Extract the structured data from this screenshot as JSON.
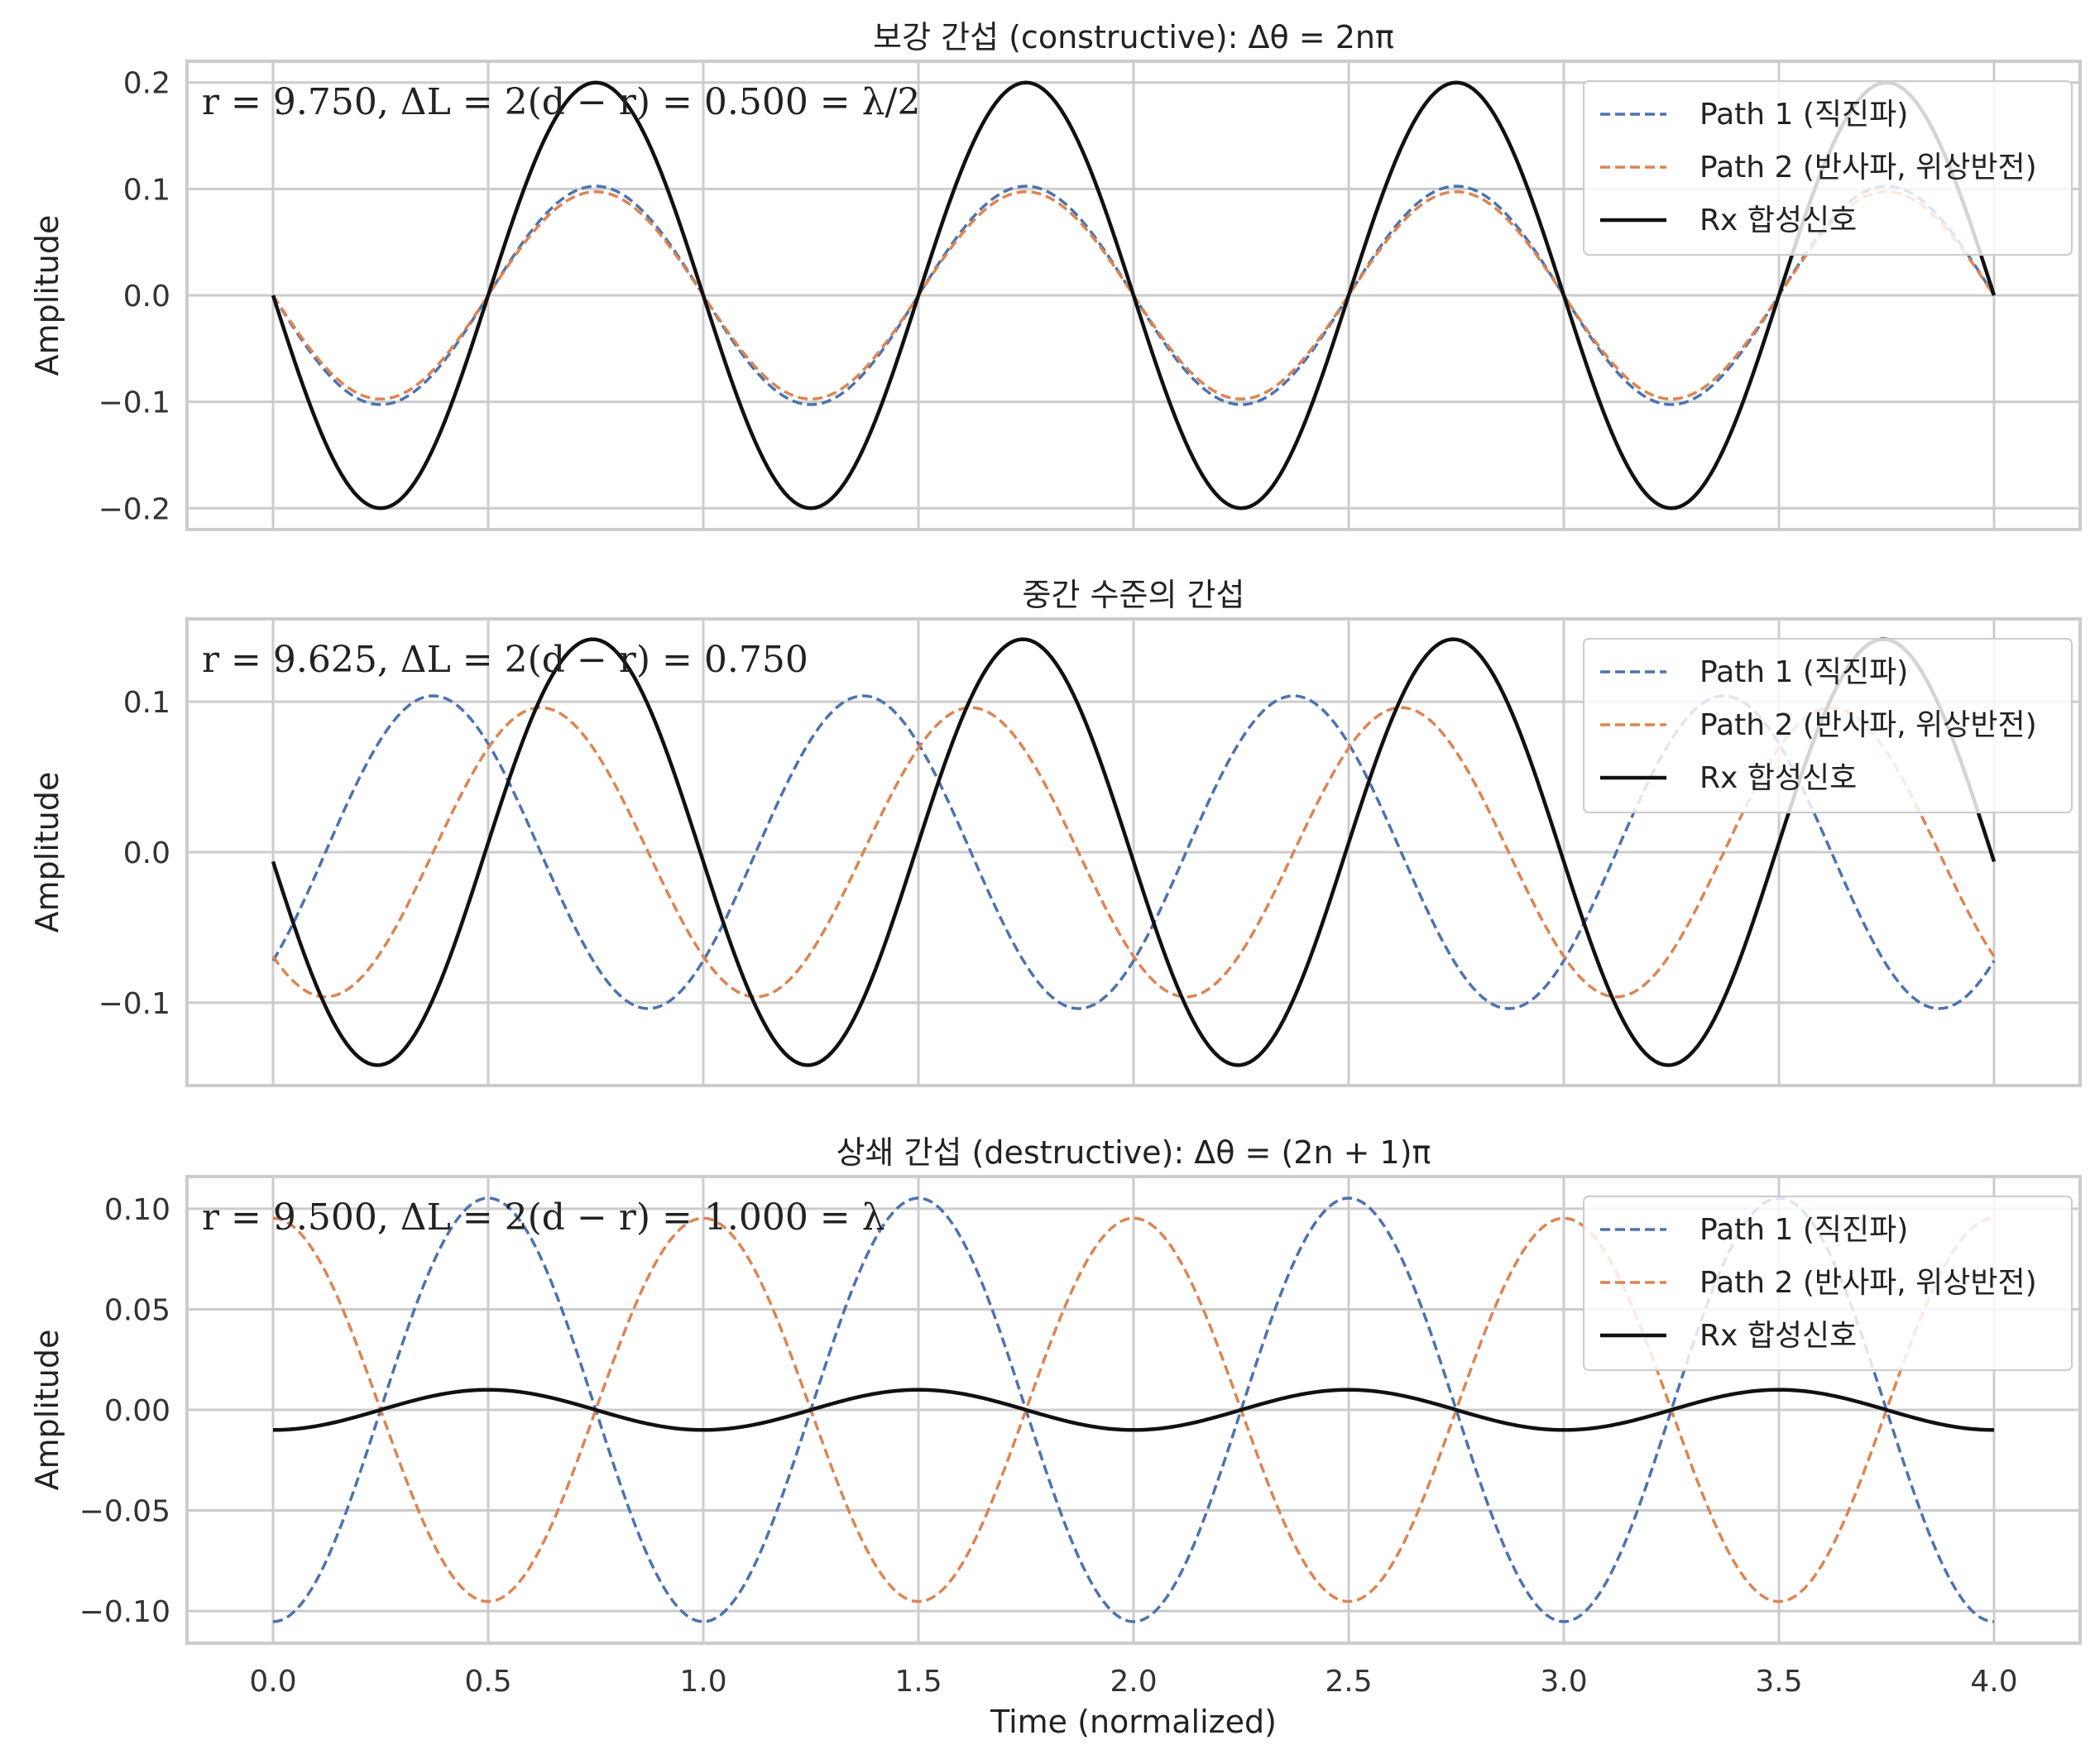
{
  "chart_data": [
    {
      "type": "line",
      "title": "보강 간섭 (constructive): Δθ = 2nπ",
      "ylabel": "Amplitude",
      "xlabel": "",
      "annotation": "r = 9.750,  ΔL = 2(d − r) = 0.500 = λ/2",
      "xlim": [
        -0.2,
        4.2
      ],
      "ylim": [
        -0.22,
        0.22
      ],
      "xticks": [
        0.0,
        0.5,
        1.0,
        1.5,
        2.0,
        2.5,
        3.0,
        3.5,
        4.0
      ],
      "xtick_labels": [
        "0.0",
        "0.5",
        "1.0",
        "1.5",
        "2.0",
        "2.5",
        "3.0",
        "3.5",
        "4.0"
      ],
      "yticks": [
        0.2,
        0.1,
        0.0,
        -0.1,
        -0.2
      ],
      "ytick_labels": [
        "0.2",
        "0.1",
        "0.0",
        "−0.1",
        "−0.2"
      ],
      "grid": true,
      "legend_position": "top-right",
      "series": [
        {
          "name": "Path 1 (직진파)",
          "color": "#4c72b0",
          "style": "dashed",
          "amplitude": 0.1026,
          "phase_cycles": 0.0,
          "period": 1.0
        },
        {
          "name": "Path 2 (반사파, 위상반전)",
          "color": "#dd8452",
          "style": "dashed",
          "amplitude": 0.0974,
          "phase_cycles": 0.0,
          "period": 1.0
        },
        {
          "name": "Rx 합성신호",
          "color": "#111111",
          "style": "solid",
          "amplitude": 0.2,
          "phase_cycles": 0.0,
          "period": 1.0
        }
      ]
    },
    {
      "type": "line",
      "title": "중간 수준의 간섭",
      "ylabel": "Amplitude",
      "xlabel": "",
      "annotation": "r = 9.625,  ΔL = 2(d − r) = 0.750",
      "xlim": [
        -0.2,
        4.2
      ],
      "ylim": [
        -0.155,
        0.155
      ],
      "xticks": [
        0.0,
        0.5,
        1.0,
        1.5,
        2.0,
        2.5,
        3.0,
        3.5,
        4.0
      ],
      "xtick_labels": [
        "0.0",
        "0.5",
        "1.0",
        "1.5",
        "2.0",
        "2.5",
        "3.0",
        "3.5",
        "4.0"
      ],
      "yticks": [
        0.1,
        0.0,
        -0.1
      ],
      "ytick_labels": [
        "0.1",
        "0.0",
        "−0.1"
      ],
      "grid": true,
      "legend_position": "top-right",
      "series": [
        {
          "name": "Path 1 (직진파)",
          "color": "#4c72b0",
          "style": "dashed",
          "amplitude": 0.1039,
          "phase_cycles": 0.378,
          "period": 1.0
        },
        {
          "name": "Path 2 (반사파, 위상반전)",
          "color": "#dd8452",
          "style": "dashed",
          "amplitude": 0.0961,
          "phase_cycles": 0.128,
          "period": 1.0
        },
        {
          "name": "Rx 합성신호",
          "color": "#111111",
          "style": "solid",
          "amplitude": 0.1415,
          "phase_cycles": 0.007,
          "period": 1.0
        }
      ]
    },
    {
      "type": "line",
      "title": "상쇄 간섭 (destructive): Δθ = (2n + 1)π",
      "ylabel": "Amplitude",
      "xlabel": "Time (normalized)",
      "annotation": "r = 9.500,  ΔL = 2(d − r) = 1.000 = λ",
      "xlim": [
        -0.2,
        4.2
      ],
      "ylim": [
        -0.116,
        0.116
      ],
      "xticks": [
        0.0,
        0.5,
        1.0,
        1.5,
        2.0,
        2.5,
        3.0,
        3.5,
        4.0
      ],
      "xtick_labels": [
        "0.0",
        "0.5",
        "1.0",
        "1.5",
        "2.0",
        "2.5",
        "3.0",
        "3.5",
        "4.0"
      ],
      "yticks": [
        0.1,
        0.05,
        0.0,
        -0.05,
        -0.1
      ],
      "ytick_labels": [
        "0.10",
        "0.05",
        "0.00",
        "−0.05",
        "−0.10"
      ],
      "grid": true,
      "legend_position": "top-right",
      "series": [
        {
          "name": "Path 1 (직진파)",
          "color": "#4c72b0",
          "style": "dashed",
          "amplitude": 0.1053,
          "phase_cycles": 0.25,
          "period": 1.0
        },
        {
          "name": "Path 2 (반사파, 위상반전)",
          "color": "#dd8452",
          "style": "dashed",
          "amplitude": 0.0953,
          "phase_cycles": -0.25,
          "period": 1.0
        },
        {
          "name": "Rx 합성신호",
          "color": "#111111",
          "style": "solid",
          "amplitude": 0.01,
          "phase_cycles": 0.25,
          "period": 1.0
        }
      ]
    }
  ]
}
